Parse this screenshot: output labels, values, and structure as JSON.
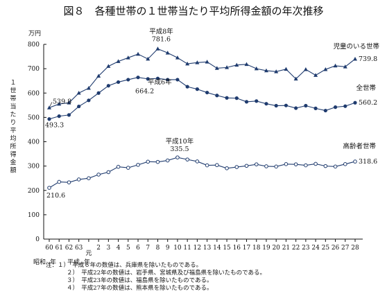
{
  "chart_data": {
    "type": "line",
    "title": "図８　各種世帯の１世帯当たり平均所得金額の年次推移",
    "yunit": "万円",
    "ylabel": "１世帯当たり平均所得金額",
    "ylim": [
      0,
      800
    ],
    "yticks": [
      "0",
      "100",
      "200",
      "300",
      "400",
      "500",
      "600",
      "700",
      "800"
    ],
    "categories": [
      "60",
      "61",
      "62",
      "63",
      "元",
      "2",
      "3",
      "4",
      "5",
      "6",
      "7",
      "8",
      "9",
      "10",
      "11",
      "12",
      "13",
      "14",
      "15",
      "16",
      "17",
      "18",
      "19",
      "20",
      "21",
      "22",
      "23",
      "24",
      "25",
      "26",
      "27",
      "28"
    ],
    "xlabel_showa": "昭和‥年",
    "xlabel_heisei": "平成‥年",
    "grid": false,
    "series": [
      {
        "name": "児童のいる世帯",
        "marker": "triangle",
        "values": [
          539.8,
          555,
          560,
          600,
          620,
          670,
          710,
          730,
          745,
          760,
          740,
          781.6,
          765,
          745,
          720,
          725,
          728,
          702,
          705,
          715,
          718,
          700,
          692,
          688,
          698,
          658,
          697,
          673,
          697,
          712,
          708,
          739.8
        ]
      },
      {
        "name": "全世帯",
        "marker": "circle-filled",
        "values": [
          493.3,
          505,
          510,
          545,
          570,
          600,
          630,
          645,
          655,
          664.2,
          658,
          660,
          655,
          655,
          626,
          616,
          602,
          590,
          580,
          579,
          564,
          567,
          556,
          548,
          549,
          538,
          548,
          537,
          528,
          542,
          546,
          560.2
        ]
      },
      {
        "name": "高齢者世帯",
        "marker": "circle-open",
        "values": [
          210.6,
          235,
          233,
          245,
          250,
          265,
          275,
          297,
          293,
          305,
          318,
          317,
          323,
          335.5,
          327,
          319,
          303,
          304,
          291,
          296,
          301,
          307,
          299,
          298,
          308,
          307,
          303,
          309,
          300,
          298,
          308,
          318.6
        ]
      }
    ],
    "annotations": [
      {
        "text": "539.8",
        "series": 0,
        "index": 0
      },
      {
        "text": "493.3",
        "series": 1,
        "index": 0
      },
      {
        "text": "平成8年",
        "series": 0,
        "index": 11
      },
      {
        "text": "781.6",
        "series": 0,
        "index": 11
      },
      {
        "text": "平成6年",
        "series": 1,
        "index": 9
      },
      {
        "text": "664.2",
        "series": 1,
        "index": 9
      },
      {
        "text": "平成10年",
        "series": 2,
        "index": 13
      },
      {
        "text": "335.5",
        "series": 2,
        "index": 13
      },
      {
        "text": "210.6",
        "series": 2,
        "index": 0
      },
      {
        "text": "児童のいる世帯",
        "series": 0,
        "index": 31
      },
      {
        "text": "739.8",
        "series": 0,
        "index": 31
      },
      {
        "text": "全世帯",
        "series": 1,
        "index": 31
      },
      {
        "text": "560.2",
        "series": 1,
        "index": 31
      },
      {
        "text": "高齢者世帯",
        "series": 2,
        "index": 31
      },
      {
        "text": "318.6",
        "series": 2,
        "index": 31
      }
    ],
    "notes": [
      "注：１）　平成６年の数値は、兵庫県を除いたものである。",
      "２）　平成22年の数値は、岩手県、宮城県及び福島県を除いたものである。",
      "３）　平成23年の数値は、福島県を除いたものである。",
      "４）　平成27年の数値は、熊本県を除いたものである。"
    ]
  }
}
